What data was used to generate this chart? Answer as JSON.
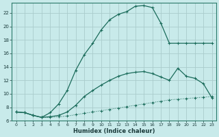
{
  "xlabel": "Humidex (Indice chaleur)",
  "bg_color": "#c8eaea",
  "grid_color": "#aacccc",
  "line_color": "#1a6b5a",
  "line1_x": [
    0,
    1,
    2,
    3,
    4,
    5,
    6,
    7,
    8,
    9,
    10,
    11,
    12,
    13,
    14,
    15,
    16,
    17,
    18,
    19,
    20,
    21,
    22,
    23
  ],
  "line1_y": [
    7.3,
    7.2,
    6.8,
    6.5,
    6.5,
    6.6,
    6.7,
    6.9,
    7.1,
    7.3,
    7.5,
    7.7,
    7.9,
    8.1,
    8.3,
    8.5,
    8.7,
    8.9,
    9.1,
    9.2,
    9.3,
    9.4,
    9.5,
    9.6
  ],
  "line2_x": [
    0,
    1,
    2,
    3,
    4,
    5,
    6,
    7,
    8,
    9,
    10,
    11,
    12,
    13,
    14,
    15,
    16,
    17,
    18,
    19,
    20,
    21,
    22,
    23
  ],
  "line2_y": [
    7.3,
    7.2,
    6.8,
    6.5,
    6.6,
    6.8,
    7.3,
    8.3,
    9.6,
    10.5,
    11.3,
    12.0,
    12.6,
    13.0,
    13.2,
    13.3,
    13.0,
    12.5,
    12.0,
    13.8,
    12.6,
    12.3,
    11.5,
    9.4
  ],
  "line3_x": [
    0,
    1,
    2,
    3,
    4,
    5,
    6,
    7,
    8,
    9,
    10,
    11,
    12,
    13,
    14,
    15,
    16,
    17,
    18,
    19,
    20,
    21,
    22,
    23
  ],
  "line3_y": [
    7.3,
    7.2,
    6.8,
    6.5,
    7.2,
    8.5,
    10.5,
    13.5,
    15.8,
    17.5,
    19.5,
    21.0,
    21.8,
    22.2,
    23.0,
    23.1,
    22.8,
    20.5,
    17.5,
    17.5,
    17.5,
    17.5,
    17.5,
    17.5
  ],
  "xlim": [
    -0.5,
    23.5
  ],
  "ylim": [
    6,
    23.5
  ],
  "yticks": [
    6,
    8,
    10,
    12,
    14,
    16,
    18,
    20,
    22
  ],
  "xticks": [
    0,
    1,
    2,
    3,
    4,
    5,
    6,
    7,
    8,
    9,
    10,
    11,
    12,
    13,
    14,
    15,
    16,
    17,
    18,
    19,
    20,
    21,
    22,
    23
  ]
}
